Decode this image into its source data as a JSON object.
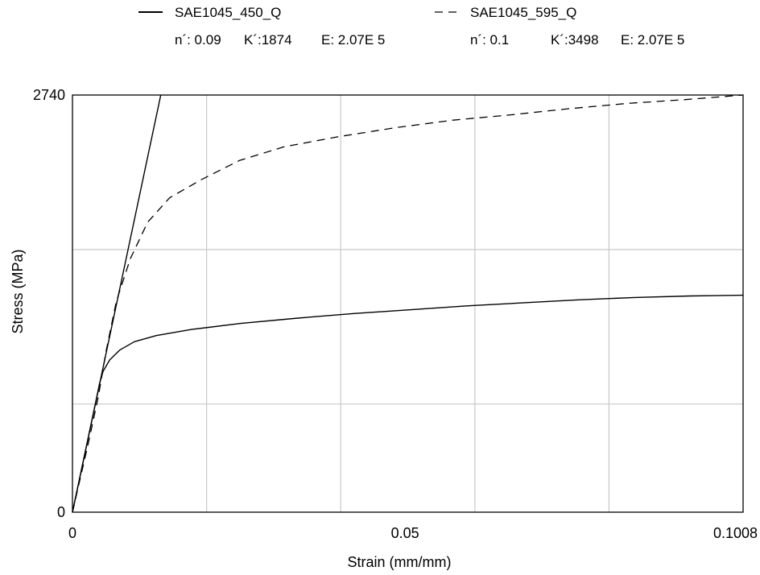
{
  "chart_data": {
    "type": "line",
    "xlabel": "Strain (mm/mm)",
    "ylabel": "Stress (MPa)",
    "xlim": [
      0,
      0.1008
    ],
    "ylim": [
      0,
      2740
    ],
    "x_ticks": [
      "0",
      "0.05",
      "0.1008"
    ],
    "y_ticks": [
      "0",
      "2740"
    ],
    "grid": true,
    "legend_position": "top",
    "series": [
      {
        "name": "SAE1045_450_Q",
        "line_style": "solid",
        "color": "#000000",
        "params": {
          "n_label": "n´: 0.09",
          "k_label": "K´:1874",
          "e_label": "E: 2.07E 5"
        },
        "x": [
          0,
          0.0022,
          0.0041,
          0.0046,
          0.0056,
          0.0071,
          0.0093,
          0.0126,
          0.0179,
          0.0253,
          0.0339,
          0.0423,
          0.0509,
          0.0593,
          0.0676,
          0.0761,
          0.0845,
          0.0929,
          0.1008
        ],
        "y": [
          0,
          455,
          850,
          925,
          1000,
          1065,
          1120,
          1160,
          1200,
          1240,
          1275,
          1305,
          1330,
          1355,
          1375,
          1395,
          1410,
          1420,
          1425
        ]
      },
      {
        "name": "SAE1045_595_Q",
        "line_style": "dashed",
        "color": "#000000",
        "params": {
          "n_label": "n´: 0.1",
          "k_label": "K´:3498",
          "e_label": "E: 2.07E 5"
        },
        "x": [
          0,
          0.0024,
          0.0039,
          0.005,
          0.0066,
          0.0087,
          0.0113,
          0.0146,
          0.0194,
          0.0251,
          0.0318,
          0.0398,
          0.0485,
          0.0572,
          0.0659,
          0.0746,
          0.0834,
          0.0921,
          0.1008
        ],
        "y": [
          0,
          455,
          760,
          1045,
          1385,
          1665,
          1905,
          2065,
          2185,
          2310,
          2400,
          2465,
          2525,
          2575,
          2610,
          2650,
          2685,
          2710,
          2740
        ]
      },
      {
        "name": "",
        "line_style": "solid",
        "color": "#000000",
        "x": [
          0,
          0.01327
        ],
        "y": [
          0,
          2740
        ]
      }
    ]
  }
}
